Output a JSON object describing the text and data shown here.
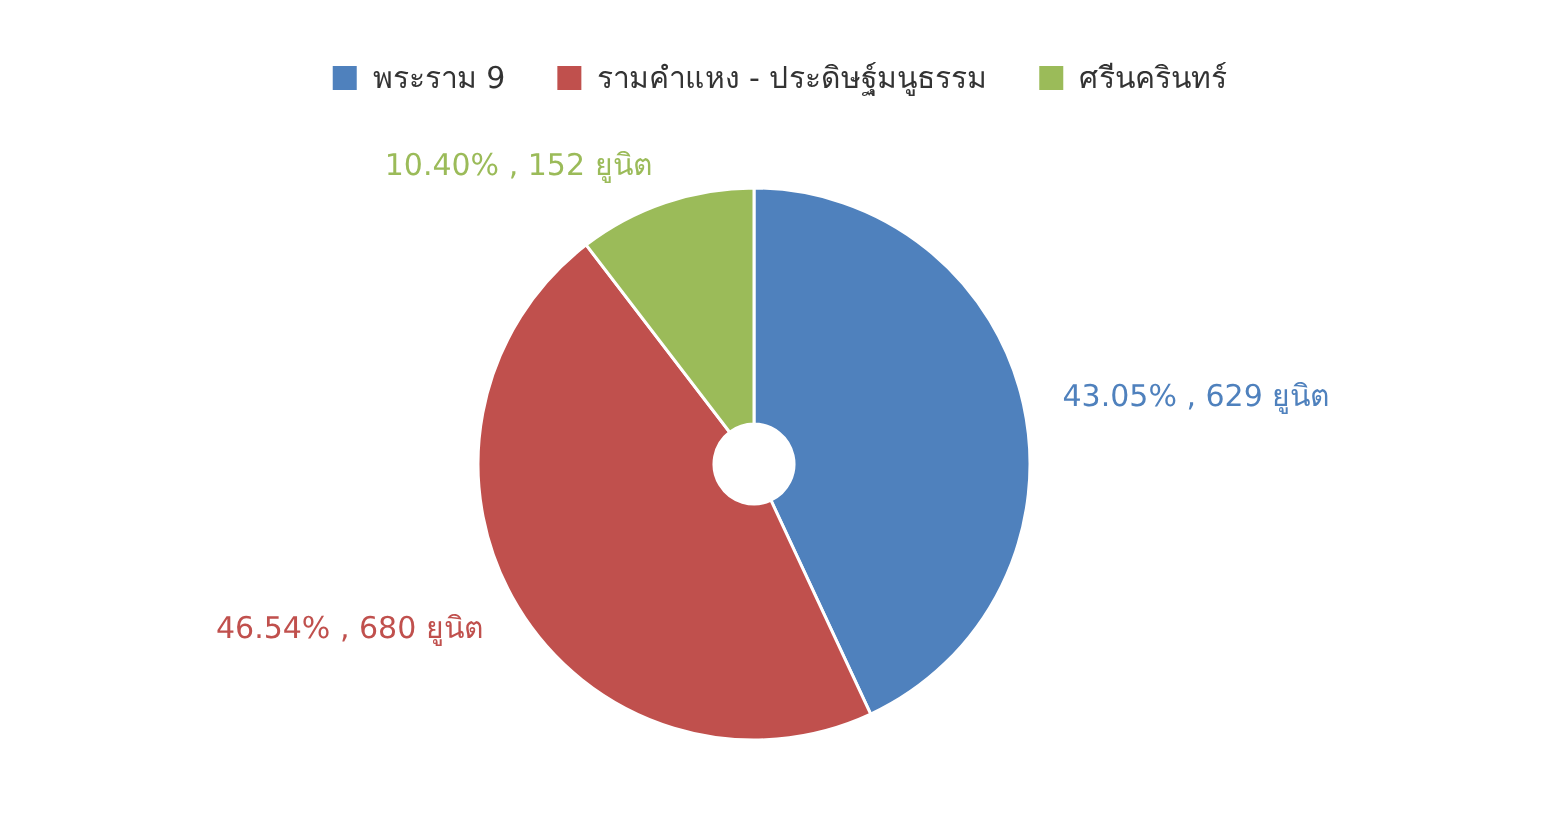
{
  "chart_data": {
    "type": "donut",
    "categories": [
      "พระราม 9",
      "รามคำแหง - ประดิษฐ์มนูธรรม",
      "ศรีนครินทร์"
    ],
    "values": [
      629,
      680,
      152
    ],
    "colors": [
      "#4f81bd",
      "#c0504d",
      "#9bbb59"
    ],
    "value_labels": [
      "43.05% , 629 ยูนิต",
      "46.54% , 680 ยูนิต",
      "10.40% , 152 ยูนิต"
    ],
    "legend": "top"
  }
}
